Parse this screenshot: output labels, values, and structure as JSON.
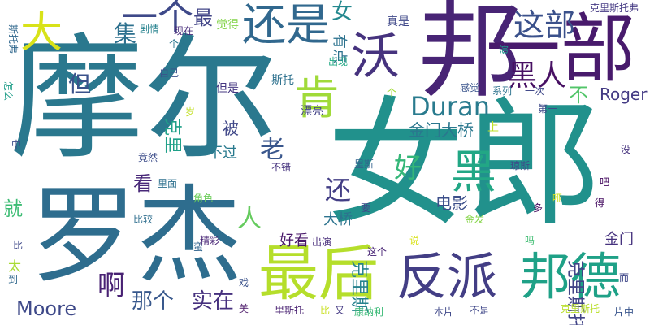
{
  "words": [
    {
      "text": "摩尔",
      "color": "#2a788e"
    },
    {
      "text": "女郎",
      "color": "#21918c"
    },
    {
      "text": "邦",
      "color": "#482475"
    },
    {
      "text": "一部",
      "color": "#481a6c"
    },
    {
      "text": "罗杰",
      "color": "#2e6d8e"
    },
    {
      "text": "最后",
      "color": "#b5de2b"
    },
    {
      "text": "反派",
      "color": "#433e85"
    },
    {
      "text": "邦德",
      "color": "#1fa187"
    },
    {
      "text": "还是",
      "color": "#31688e"
    },
    {
      "text": "沃",
      "color": "#46337e"
    },
    {
      "text": "肯",
      "color": "#a0da39"
    },
    {
      "text": "Duran",
      "color": "#297b8e"
    },
    {
      "text": "黑",
      "color": "#22a785"
    },
    {
      "text": "这部",
      "color": "#3b518b"
    },
    {
      "text": "一个",
      "color": "#3e4989"
    },
    {
      "text": "黑人",
      "color": "#471063"
    },
    {
      "text": "大",
      "color": "#d8e219"
    },
    {
      "text": "但",
      "color": "#3b528b"
    },
    {
      "text": "集",
      "color": "#2d708e"
    },
    {
      "text": "女",
      "color": "#23888e"
    },
    {
      "text": "最",
      "color": "#414487"
    },
    {
      "text": "好",
      "color": "#35b779"
    },
    {
      "text": "还",
      "color": "#433e85"
    },
    {
      "text": "人",
      "color": "#65cb5e"
    },
    {
      "text": "啊",
      "color": "#482173"
    },
    {
      "text": "Moore",
      "color": "#3e4989"
    },
    {
      "text": "那个",
      "color": "#38588c"
    },
    {
      "text": "实在",
      "color": "#46307e"
    },
    {
      "text": "金门大桥",
      "color": "#2a778e"
    },
    {
      "text": "Roger",
      "color": "#443b84"
    },
    {
      "text": "不",
      "color": "#52c569"
    },
    {
      "text": "老",
      "color": "#39568c"
    },
    {
      "text": "被",
      "color": "#3f4788"
    },
    {
      "text": "看",
      "color": "#482878"
    },
    {
      "text": "就",
      "color": "#3dbc74"
    },
    {
      "text": "电影",
      "color": "#3c4f8a"
    },
    {
      "text": "大桥",
      "color": "#2c738e"
    },
    {
      "text": "好看",
      "color": "#481769"
    },
    {
      "text": "金门",
      "color": "#46327e"
    },
    {
      "text": "不过",
      "color": "#297a8e"
    },
    {
      "text": "克里斯托",
      "color": "#414487"
    },
    {
      "text": "克里斯",
      "color": "#26828e"
    },
    {
      "text": "克里",
      "color": "#1fa088"
    },
    {
      "text": "太",
      "color": "#a8db34"
    },
    {
      "text": "有点",
      "color": "#2c728e"
    },
    {
      "text": "觉得",
      "color": "#84d44b"
    },
    {
      "text": "剧情",
      "color": "#26828e"
    },
    {
      "text": "现在",
      "color": "#472d7b"
    },
    {
      "text": "真是",
      "color": "#3f4889"
    },
    {
      "text": "克里斯托弗",
      "color": "#443983"
    },
    {
      "text": "斯托弗",
      "color": "#31688e"
    },
    {
      "text": "个人",
      "color": "#2a768e"
    },
    {
      "text": "怎么",
      "color": "#1f9e89"
    },
    {
      "text": "自己",
      "color": "#3b528b"
    },
    {
      "text": "出现",
      "color": "#22a884"
    },
    {
      "text": "斯托",
      "color": "#2d718e"
    },
    {
      "text": "但是",
      "color": "#453781"
    },
    {
      "text": "感觉",
      "color": "#3a548c"
    },
    {
      "text": "系列",
      "color": "#2c728e"
    },
    {
      "text": "一次",
      "color": "#3f4788"
    },
    {
      "text": "漂亮",
      "color": "#424186"
    },
    {
      "text": "演",
      "color": "#1f958b"
    },
    {
      "text": "第一",
      "color": "#3e4a89"
    },
    {
      "text": "上",
      "color": "#bddf26"
    },
    {
      "text": "岁",
      "color": "#c2df23"
    },
    {
      "text": "中",
      "color": "#3d4e8a"
    },
    {
      "text": "竟然",
      "color": "#3d4d8a"
    },
    {
      "text": "不错",
      "color": "#46337f"
    },
    {
      "text": "里斯",
      "color": "#33638d"
    },
    {
      "text": "琼斯",
      "color": "#3e4989"
    },
    {
      "text": "没",
      "color": "#46337e"
    },
    {
      "text": "吧",
      "color": "#470e61"
    },
    {
      "text": "里面",
      "color": "#2d708e"
    },
    {
      "text": "角色",
      "color": "#6ccd5a"
    },
    {
      "text": "金发",
      "color": "#86d549"
    },
    {
      "text": "哑",
      "color": "#d2e21b"
    },
    {
      "text": "得",
      "color": "#471063"
    },
    {
      "text": "多",
      "color": "#470d60"
    },
    {
      "text": "要",
      "color": "#3e4989"
    },
    {
      "text": "比较",
      "color": "#2e6e8e"
    },
    {
      "text": "蛮",
      "color": "#32658e"
    },
    {
      "text": "精彩",
      "color": "#482576"
    },
    {
      "text": "出演",
      "color": "#472c7a"
    },
    {
      "text": "这个",
      "color": "#482475"
    },
    {
      "text": "说",
      "color": "#d8e219"
    },
    {
      "text": "吗",
      "color": "#40bd72"
    },
    {
      "text": "比",
      "color": "#3f4889"
    },
    {
      "text": "到",
      "color": "#31688e"
    },
    {
      "text": "戏",
      "color": "#3b528b"
    },
    {
      "text": "美",
      "color": "#471365"
    },
    {
      "text": "里斯托",
      "color": "#482071"
    },
    {
      "text": "比",
      "color": "#c8e020"
    },
    {
      "text": "又",
      "color": "#443983"
    },
    {
      "text": "康纳利",
      "color": "#3aba76"
    },
    {
      "text": "本片",
      "color": "#3f4889"
    },
    {
      "text": "不是",
      "color": "#3f4788"
    },
    {
      "text": "克里斯托",
      "color": "#b8de29"
    },
    {
      "text": "片中",
      "color": "#39558c"
    },
    {
      "text": "而",
      "color": "#3f4788"
    },
    {
      "text": "个",
      "color": "#a2da37"
    }
  ]
}
